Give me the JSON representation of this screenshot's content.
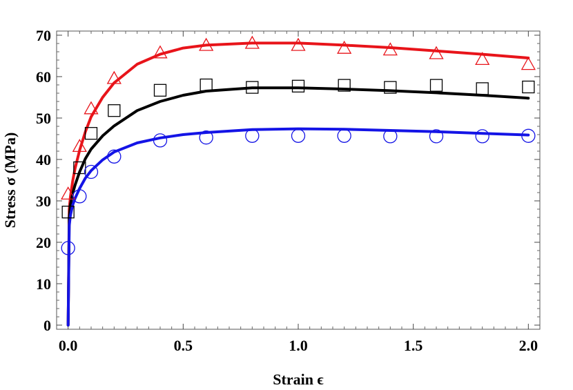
{
  "chart_data": {
    "type": "scatter",
    "title": "",
    "xlabel": "Strain ϵ",
    "ylabel": "Stress σ (MPa)",
    "xlim": [
      -0.05,
      2.05
    ],
    "ylim": [
      -1,
      71
    ],
    "xticks": [
      0.0,
      0.5,
      1.0,
      1.5,
      2.0
    ],
    "xtick_labels": [
      "0.0",
      "0.5",
      "1.0",
      "1.5",
      "2.0"
    ],
    "yticks": [
      0,
      10,
      20,
      30,
      40,
      50,
      60,
      70
    ],
    "ytick_labels": [
      "0",
      "10",
      "20",
      "30",
      "40",
      "50",
      "60",
      "70"
    ],
    "grid": false,
    "legend": "none",
    "series": [
      {
        "color": "#e8141a",
        "marker": "triangle",
        "points": {
          "x": [
            0.0,
            0.05,
            0.1,
            0.2,
            0.4,
            0.6,
            0.8,
            1.0,
            1.2,
            1.4,
            1.6,
            1.8,
            2.0
          ],
          "y": [
            31.6,
            43.1,
            52.2,
            59.5,
            65.7,
            67.5,
            68.0,
            67.5,
            66.8,
            66.4,
            65.5,
            64.1,
            62.9
          ]
        },
        "fit": {
          "x": [
            0.0,
            0.005,
            0.01,
            0.02,
            0.03,
            0.05,
            0.075,
            0.1,
            0.15,
            0.2,
            0.3,
            0.4,
            0.5,
            0.6,
            0.8,
            1.0,
            1.2,
            1.4,
            1.6,
            1.8,
            2.0
          ],
          "y": [
            0.0,
            28.0,
            31.0,
            34.8,
            37.8,
            42.2,
            46.7,
            50.3,
            55.0,
            58.5,
            63.0,
            65.4,
            66.9,
            67.6,
            68.1,
            68.1,
            67.6,
            67.0,
            66.2,
            65.4,
            64.5
          ]
        }
      },
      {
        "color": "#000000",
        "marker": "square",
        "points": {
          "x": [
            0.0,
            0.05,
            0.1,
            0.2,
            0.4,
            0.6,
            0.8,
            1.0,
            1.2,
            1.4,
            1.6,
            1.8,
            2.0
          ],
          "y": [
            27.3,
            38.0,
            46.3,
            51.8,
            56.7,
            58.0,
            57.4,
            57.7,
            57.9,
            57.4,
            57.9,
            57.1,
            57.5
          ]
        },
        "fit": {
          "x": [
            0.0,
            0.005,
            0.01,
            0.02,
            0.03,
            0.05,
            0.075,
            0.1,
            0.15,
            0.2,
            0.3,
            0.4,
            0.5,
            0.6,
            0.8,
            1.0,
            1.2,
            1.4,
            1.6,
            1.8,
            2.0
          ],
          "y": [
            0.0,
            26.0,
            29.0,
            31.8,
            33.8,
            37.0,
            40.2,
            42.5,
            45.7,
            48.1,
            51.8,
            54.0,
            55.5,
            56.5,
            57.3,
            57.3,
            57.0,
            56.6,
            56.1,
            55.5,
            54.8
          ]
        }
      },
      {
        "color": "#1414e6",
        "marker": "circle",
        "points": {
          "x": [
            0.0,
            0.05,
            0.1,
            0.2,
            0.4,
            0.6,
            0.8,
            1.0,
            1.2,
            1.4,
            1.6,
            1.8,
            2.0
          ],
          "y": [
            18.6,
            31.1,
            37.0,
            40.7,
            44.6,
            45.3,
            45.7,
            45.7,
            45.7,
            45.6,
            45.6,
            45.6,
            45.7
          ]
        },
        "fit": {
          "x": [
            0.0,
            0.005,
            0.01,
            0.02,
            0.03,
            0.05,
            0.075,
            0.1,
            0.15,
            0.2,
            0.3,
            0.4,
            0.5,
            0.6,
            0.8,
            1.0,
            1.2,
            1.4,
            1.6,
            1.8,
            2.0
          ],
          "y": [
            0.0,
            24.0,
            26.5,
            29.0,
            30.6,
            33.0,
            35.5,
            37.3,
            39.9,
            41.8,
            44.0,
            45.2,
            46.0,
            46.5,
            47.2,
            47.4,
            47.3,
            47.0,
            46.7,
            46.3,
            45.9
          ]
        }
      }
    ]
  }
}
